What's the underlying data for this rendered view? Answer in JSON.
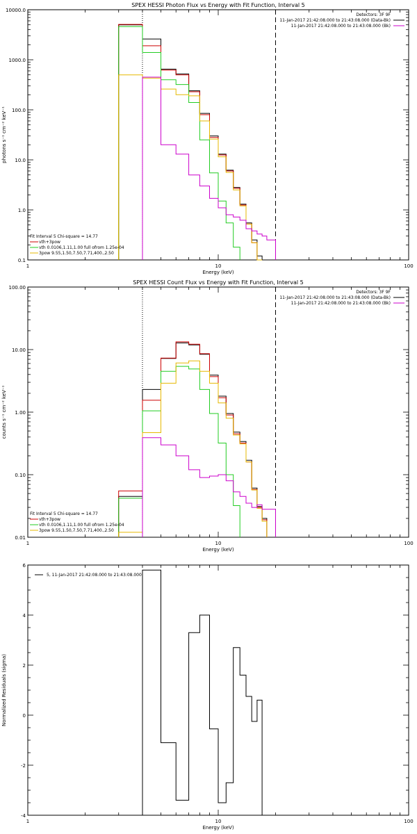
{
  "chart_data": [
    {
      "type": "line",
      "title": "SPEX HESSI Photon Flux vs Energy with Fit Function, Interval 5",
      "xlabel": "Energy (keV)",
      "ylabel": "photons s⁻¹ cm⁻² keV⁻¹",
      "xscale": "log",
      "yscale": "log",
      "xlim": [
        1,
        100
      ],
      "ylim": [
        0.1,
        10000
      ],
      "xticks": [
        {
          "v": 1,
          "label": "1"
        },
        {
          "v": 10,
          "label": "10"
        },
        {
          "v": 100,
          "label": "100"
        }
      ],
      "yticks": [
        {
          "v": 0.1,
          "label": "0.1"
        },
        {
          "v": 1,
          "label": "1.0"
        },
        {
          "v": 10,
          "label": "10.0"
        },
        {
          "v": 100,
          "label": "100.0"
        },
        {
          "v": 1000,
          "label": "1000.0"
        },
        {
          "v": 10000,
          "label": "10000.0"
        }
      ],
      "header_lines": [
        "Detectors: 3F 9F",
        "11-Jan-2017 21:42:08.000 to 21:43:08.000 (Data-Bk)",
        "11-Jan-2017 21:42:08.000 to 21:43:08.000 (Bk)"
      ],
      "header_colors": [
        "",
        "#000000",
        "#cc00cc"
      ],
      "legend_lines": [
        "Fit Interval 5   Chi-square = 14.77",
        "vth+3pow",
        "vth 0.0106,1.11,1.00  full ofrom 1.25e-04",
        "3pow 9.55,1.50,7.50,7.71,400.,2.50"
      ],
      "legend_colors": [
        "",
        "#cc0000",
        "#22cc22",
        "#e6b800"
      ],
      "vlines": [
        {
          "x": 4.0,
          "style": "dotted"
        },
        {
          "x": 20.0,
          "style": "dashed"
        }
      ],
      "bin_edges": [
        3,
        4,
        5,
        6,
        7,
        8,
        9,
        10,
        11,
        12,
        13,
        14,
        15,
        16,
        17,
        18,
        20
      ],
      "series": [
        {
          "role": "data-bk",
          "color": "#000000",
          "values": [
            5000,
            2600,
            650,
            520,
            240,
            85,
            30,
            13,
            6.2,
            2.8,
            1.3,
            0.55,
            0.25,
            0.12,
            null,
            null
          ]
        },
        {
          "role": "vth+3pow",
          "color": "#cc0000",
          "values": [
            5100,
            1900,
            620,
            500,
            230,
            80,
            28,
            12.5,
            6.0,
            2.7,
            1.25,
            0.52,
            0.22,
            0.1,
            null,
            null
          ]
        },
        {
          "role": "vth",
          "color": "#22cc22",
          "values": [
            4600,
            1400,
            400,
            320,
            140,
            25,
            5.5,
            1.5,
            0.55,
            0.18,
            null,
            null,
            null,
            null,
            null,
            null
          ]
        },
        {
          "role": "3pow",
          "color": "#e6b800",
          "values": [
            500,
            430,
            260,
            200,
            190,
            60,
            26,
            11.5,
            5.6,
            2.5,
            1.2,
            0.52,
            0.22,
            0.1,
            null,
            null
          ]
        },
        {
          "role": "bk",
          "color": "#cc00cc",
          "values": [
            null,
            450,
            20,
            13,
            5,
            3,
            1.7,
            1.1,
            0.8,
            0.72,
            0.62,
            0.42,
            0.38,
            0.33,
            0.3,
            0.25
          ]
        }
      ]
    },
    {
      "type": "line",
      "title": "SPEX HESSI Count Flux vs Energy with Fit Function, Interval 5",
      "xlabel": "Energy (keV)",
      "ylabel": "counts s⁻¹ cm⁻² keV⁻¹",
      "xscale": "log",
      "yscale": "log",
      "xlim": [
        1,
        100
      ],
      "ylim": [
        0.01,
        100
      ],
      "xticks": [
        {
          "v": 1,
          "label": "1"
        },
        {
          "v": 10,
          "label": "10"
        },
        {
          "v": 100,
          "label": "100"
        }
      ],
      "yticks": [
        {
          "v": 0.01,
          "label": "0.01"
        },
        {
          "v": 0.1,
          "label": "0.10"
        },
        {
          "v": 1,
          "label": "1.00"
        },
        {
          "v": 10,
          "label": "10.00"
        },
        {
          "v": 100,
          "label": "100.00"
        }
      ],
      "header_lines": [
        "Detectors: 3F 9F",
        "11-Jan-2017 21:42:08.000 to 21:43:08.000 (Data-Bk)",
        "11-Jan-2017 21:42:08.000 to 21:43:08.000 (Bk)"
      ],
      "header_colors": [
        "",
        "#000000",
        "#cc00cc"
      ],
      "legend_lines": [
        "Fit Interval 5   Chi-square = 14.77",
        "vth+3pow",
        "vth 0.0106,1.11,1.00  full ofrom 1.25e-04",
        "3pow 9.55,1.50,7.50,7.71,400.,2.50"
      ],
      "legend_colors": [
        "",
        "#cc0000",
        "#22cc22",
        "#e6b800"
      ],
      "vlines": [
        {
          "x": 4.0,
          "style": "dotted"
        },
        {
          "x": 20.0,
          "style": "dashed"
        }
      ],
      "bin_edges": [
        3,
        4,
        5,
        6,
        7,
        8,
        9,
        10,
        11,
        12,
        13,
        14,
        15,
        16,
        17,
        18,
        20
      ],
      "series": [
        {
          "role": "data-bk",
          "color": "#000000",
          "values": [
            0.045,
            2.3,
            7.2,
            12.8,
            11.9,
            8.4,
            3.9,
            1.8,
            0.95,
            0.48,
            0.34,
            0.17,
            0.061,
            0.031,
            0.02,
            null
          ]
        },
        {
          "role": "vth+3pow",
          "color": "#cc0000",
          "values": [
            0.055,
            1.55,
            7.3,
            13.3,
            12.2,
            8.6,
            3.7,
            1.7,
            0.9,
            0.45,
            0.32,
            0.16,
            0.058,
            0.03,
            0.019,
            null
          ]
        },
        {
          "role": "vth",
          "color": "#22cc22",
          "values": [
            0.042,
            1.05,
            4.5,
            5.4,
            4.9,
            2.3,
            0.95,
            0.32,
            0.1,
            0.032,
            null,
            null,
            null,
            null,
            null,
            null
          ]
        },
        {
          "role": "3pow",
          "color": "#e6b800",
          "values": [
            0.012,
            0.47,
            2.9,
            6.1,
            6.6,
            4.5,
            2.9,
            1.4,
            0.8,
            0.43,
            0.31,
            0.16,
            0.057,
            0.029,
            0.018,
            null
          ]
        },
        {
          "role": "bk",
          "color": "#cc00cc",
          "values": [
            null,
            0.39,
            0.3,
            0.2,
            0.12,
            0.09,
            0.095,
            0.1,
            0.08,
            0.053,
            0.045,
            0.035,
            0.03,
            0.033,
            0.028,
            0.028
          ]
        }
      ]
    },
    {
      "type": "line",
      "title": "",
      "xlabel": "Energy (keV)",
      "ylabel": "Normalized Residuals (sigma)",
      "xscale": "log",
      "yscale": "linear",
      "xlim": [
        1,
        100
      ],
      "ylim": [
        -4,
        6
      ],
      "xticks": [
        {
          "v": 1,
          "label": "1"
        },
        {
          "v": 10,
          "label": "10"
        },
        {
          "v": 100,
          "label": "100"
        }
      ],
      "yticks": [
        {
          "v": -4,
          "label": "-4"
        },
        {
          "v": -2,
          "label": "-2"
        },
        {
          "v": 0,
          "label": "0"
        },
        {
          "v": 2,
          "label": "2"
        },
        {
          "v": 4,
          "label": "4"
        },
        {
          "v": 6,
          "label": "6"
        }
      ],
      "header_lines": [],
      "header_colors": [],
      "legend_lines": [
        "5, 11-Jan-2017 21:42:08.000 to 21:43:08.000"
      ],
      "legend_colors": [
        "#000000"
      ],
      "vlines": [],
      "bin_edges": [
        4,
        5,
        6,
        7,
        8,
        9,
        10,
        11,
        12,
        13,
        14,
        15,
        16,
        17,
        18,
        20
      ],
      "series": [
        {
          "role": "residuals",
          "color": "#000000",
          "values": [
            5.8,
            -1.1,
            -3.4,
            3.3,
            4.0,
            -0.55,
            -3.5,
            -2.7,
            2.7,
            1.6,
            0.75,
            -0.25,
            0.6,
            null,
            null
          ]
        }
      ]
    }
  ]
}
